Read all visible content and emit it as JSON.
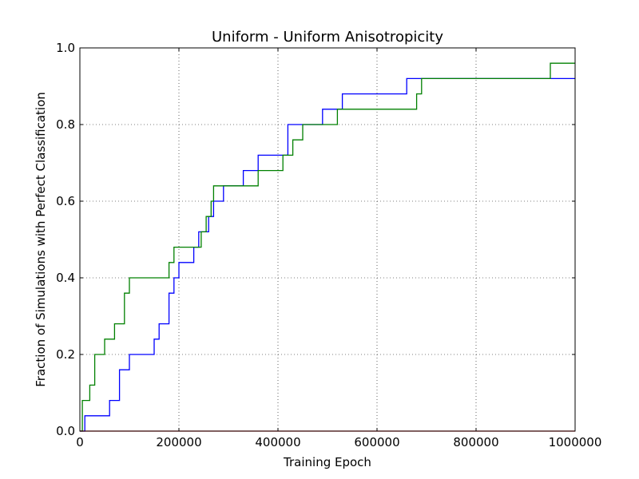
{
  "chart_data": {
    "type": "line",
    "title": "Uniform - Uniform Anisotropicity",
    "xlabel": "Training Epoch",
    "ylabel": "Fraction of Simulations with Perfect Classification",
    "xlim": [
      0,
      1000000
    ],
    "ylim": [
      0,
      1.0
    ],
    "grid": true,
    "step": true,
    "xticks": [
      0,
      200000,
      400000,
      600000,
      800000,
      1000000
    ],
    "xtick_labels": [
      "0",
      "200000",
      "400000",
      "600000",
      "800000",
      "1000000"
    ],
    "yticks": [
      0.0,
      0.2,
      0.4,
      0.6,
      0.8,
      1.0
    ],
    "ytick_labels": [
      "0.0",
      "0.2",
      "0.4",
      "0.6",
      "0.8",
      "1.0"
    ],
    "series": [
      {
        "color": "#0000ff",
        "x": [
          0,
          10000,
          60000,
          80000,
          100000,
          150000,
          160000,
          180000,
          190000,
          200000,
          230000,
          240000,
          260000,
          270000,
          290000,
          330000,
          360000,
          420000,
          490000,
          530000,
          660000,
          690000,
          1000000
        ],
        "y": [
          0.0,
          0.04,
          0.08,
          0.16,
          0.2,
          0.24,
          0.28,
          0.36,
          0.4,
          0.44,
          0.48,
          0.52,
          0.56,
          0.6,
          0.64,
          0.68,
          0.72,
          0.8,
          0.84,
          0.88,
          0.92,
          0.92,
          0.92
        ]
      },
      {
        "color": "#008000",
        "x": [
          0,
          5000,
          20000,
          30000,
          50000,
          70000,
          90000,
          100000,
          180000,
          190000,
          245000,
          255000,
          265000,
          270000,
          360000,
          410000,
          430000,
          450000,
          520000,
          680000,
          690000,
          950000,
          1000000
        ],
        "y": [
          0.0,
          0.08,
          0.12,
          0.2,
          0.24,
          0.28,
          0.36,
          0.4,
          0.44,
          0.48,
          0.52,
          0.56,
          0.6,
          0.64,
          0.68,
          0.72,
          0.76,
          0.8,
          0.84,
          0.88,
          0.92,
          0.96,
          0.96
        ]
      },
      {
        "color": "#ff0000",
        "x": [
          0,
          1000000
        ],
        "y": [
          0.0,
          0.0
        ]
      }
    ]
  }
}
